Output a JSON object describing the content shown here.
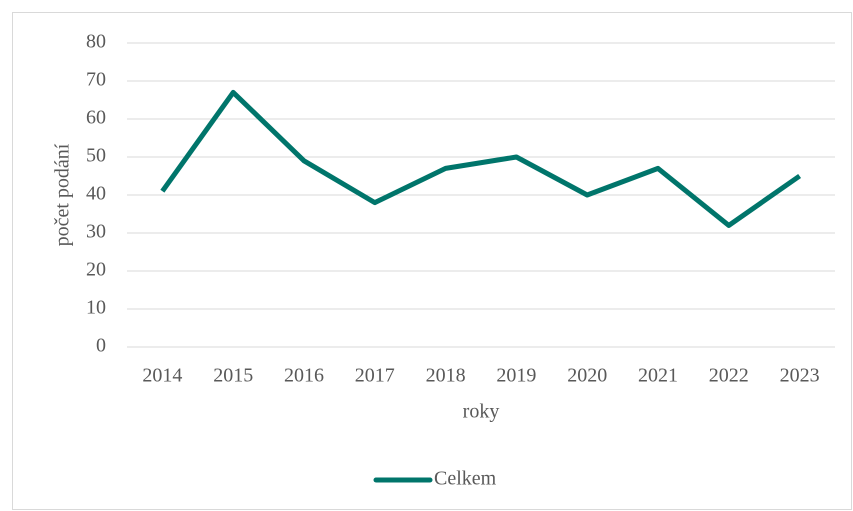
{
  "chart_data": {
    "type": "line",
    "categories": [
      "2014",
      "2015",
      "2016",
      "2017",
      "2018",
      "2019",
      "2020",
      "2021",
      "2022",
      "2023"
    ],
    "series": [
      {
        "name": "Celkem",
        "color": "#00756b",
        "values": [
          41,
          67,
          49,
          38,
          47,
          50,
          40,
          47,
          32,
          45
        ]
      }
    ],
    "xlabel": "roky",
    "ylabel": "počet podání",
    "ylim": [
      0,
      80
    ],
    "yticks": [
      0,
      10,
      20,
      30,
      40,
      50,
      60,
      70,
      80
    ],
    "grid": true,
    "legend": "bottom"
  }
}
